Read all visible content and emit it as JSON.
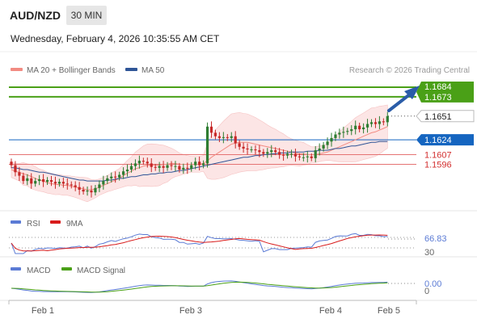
{
  "header": {
    "symbol": "AUD/NZD",
    "timeframe": "30 MIN",
    "datetime": "Wednesday, February 4, 2026 10:35:55 AM CET"
  },
  "legend": {
    "ma20_label": "MA 20 + Bollinger Bands",
    "ma50_label": "MA 50",
    "ma20_color": "#f28b82",
    "ma50_color": "#2f5597",
    "copyright": "Research © 2026 Trading Central"
  },
  "colors": {
    "bull_candle": "#2e7d32",
    "bear_candle": "#c62828",
    "green_level": "#4aa017",
    "red_level": "#e57373",
    "blue_level": "#1565c0",
    "arrow": "#2a5ca8",
    "rsi": "#5b7bd5",
    "rsi_ma": "#d81b1b",
    "macd": "#5b7bd5",
    "macd_signal": "#4aa017"
  },
  "chart_data": {
    "type": "candlestick",
    "ylim": [
      1.1555,
      1.1695
    ],
    "x_ticks": [
      "Feb 1",
      "Feb 3",
      "Feb 4",
      "Feb 5"
    ],
    "levels": [
      {
        "value": 1.1684,
        "label": "1.1684",
        "kind": "resistance"
      },
      {
        "value": 1.1673,
        "label": "1.1673",
        "kind": "resistance"
      },
      {
        "value": 1.1651,
        "label": "1.1651",
        "kind": "last"
      },
      {
        "value": 1.1624,
        "label": "1.1624",
        "kind": "pivot"
      },
      {
        "value": 1.1607,
        "label": "1.1607",
        "kind": "support"
      },
      {
        "value": 1.1596,
        "label": "1.1596",
        "kind": "support"
      }
    ],
    "close": [
      1.1595,
      1.1587,
      1.1583,
      1.1577,
      1.158,
      1.1574,
      1.1577,
      1.1579,
      1.1576,
      1.1578,
      1.1576,
      1.1574,
      1.1576,
      1.1574,
      1.1573,
      1.1572,
      1.157,
      1.1567,
      1.1565,
      1.1566,
      1.1564,
      1.1569,
      1.1573,
      1.1577,
      1.158,
      1.1582,
      1.1581,
      1.1584,
      1.1588,
      1.159,
      1.1594,
      1.1597,
      1.16,
      1.1599,
      1.1597,
      1.1593,
      1.1592,
      1.1594,
      1.1592,
      1.1595,
      1.1594,
      1.1594,
      1.159,
      1.1592,
      1.1591,
      1.1595,
      1.1599,
      1.1595,
      1.1597,
      1.1639,
      1.1632,
      1.1628,
      1.1626,
      1.1627,
      1.1626,
      1.1628,
      1.162,
      1.1616,
      1.1614,
      1.1613,
      1.1613,
      1.1612,
      1.161,
      1.1608,
      1.161,
      1.1612,
      1.161,
      1.1607,
      1.1606,
      1.1608,
      1.1608,
      1.1605,
      1.1604,
      1.1604,
      1.1605,
      1.1603,
      1.1612,
      1.1614,
      1.1618,
      1.1622,
      1.1626,
      1.163,
      1.1632,
      1.1633,
      1.1634,
      1.1636,
      1.164,
      1.1636,
      1.1638,
      1.1642,
      1.1644,
      1.1642,
      1.1645,
      1.1644,
      1.1651
    ],
    "series": [
      {
        "name": "MA 20",
        "values": [
          1.159,
          1.1588,
          1.1587,
          1.1585,
          1.1584,
          1.1582,
          1.158,
          1.1578,
          1.1577,
          1.1575,
          1.1574,
          1.1573,
          1.1573,
          1.1572,
          1.1572,
          1.1571,
          1.157,
          1.1569,
          1.1568,
          1.1567,
          1.1567,
          1.1568,
          1.157,
          1.1572,
          1.1574,
          1.1576,
          1.1578,
          1.158,
          1.1583,
          1.1586,
          1.1588,
          1.1591,
          1.1592,
          1.1594,
          1.1595,
          1.1595,
          1.1595,
          1.1595,
          1.1596,
          1.1596,
          1.1597,
          1.1597,
          1.1596,
          1.1596,
          1.1596,
          1.1596,
          1.1596,
          1.1596,
          1.1597,
          1.16,
          1.1604,
          1.1607,
          1.161,
          1.1613,
          1.1616,
          1.1619,
          1.162,
          1.1621,
          1.1621,
          1.1621,
          1.162,
          1.1619,
          1.1618,
          1.1617,
          1.1616,
          1.1615,
          1.1614,
          1.1613,
          1.1612,
          1.1611,
          1.161,
          1.1609,
          1.1608,
          1.1608,
          1.1607,
          1.1607,
          1.1607,
          1.1608,
          1.1609,
          1.161,
          1.1612,
          1.1614,
          1.1616,
          1.1618,
          1.162,
          1.1622,
          1.1624,
          1.1626,
          1.1628,
          1.163,
          1.1632,
          1.1633,
          1.1635,
          1.1637,
          1.1639
        ]
      },
      {
        "name": "MA 50",
        "values": [
          1.1592,
          1.1592,
          1.1591,
          1.159,
          1.159,
          1.1589,
          1.1588,
          1.1587,
          1.1587,
          1.1586,
          1.1585,
          1.1584,
          1.1583,
          1.1582,
          1.1581,
          1.158,
          1.1579,
          1.1578,
          1.1578,
          1.1577,
          1.1577,
          1.1577,
          1.1577,
          1.1577,
          1.1578,
          1.1578,
          1.1579,
          1.158,
          1.158,
          1.1581,
          1.1582,
          1.1582,
          1.1583,
          1.1584,
          1.1584,
          1.1585,
          1.1585,
          1.1586,
          1.1586,
          1.1587,
          1.1587,
          1.1588,
          1.1589,
          1.1589,
          1.159,
          1.1591,
          1.1592,
          1.1593,
          1.1594,
          1.1595,
          1.1596,
          1.1597,
          1.1598,
          1.1599,
          1.16,
          1.1601,
          1.1602,
          1.1603,
          1.1604,
          1.1604,
          1.1605,
          1.1606,
          1.1606,
          1.1607,
          1.1607,
          1.1608,
          1.1608,
          1.1609,
          1.1609,
          1.1609,
          1.161,
          1.161,
          1.161,
          1.161,
          1.1611,
          1.1611,
          1.1611,
          1.1612,
          1.1612,
          1.1612,
          1.1613,
          1.1614,
          1.1614,
          1.1615,
          1.1616,
          1.1617,
          1.1617,
          1.1618,
          1.1619,
          1.162,
          1.1621,
          1.1621,
          1.1622,
          1.1622,
          1.1622
        ]
      }
    ],
    "rsi": {
      "labels": [
        "RSI",
        "9MA"
      ],
      "levels": [
        70,
        30
      ],
      "ylim": [
        0,
        100
      ],
      "value_label": "66.83",
      "level_label_30": "30"
    },
    "macd": {
      "labels": [
        "MACD",
        "MACD Signal"
      ],
      "value_label": "0.00",
      "zero_label": "0"
    }
  }
}
